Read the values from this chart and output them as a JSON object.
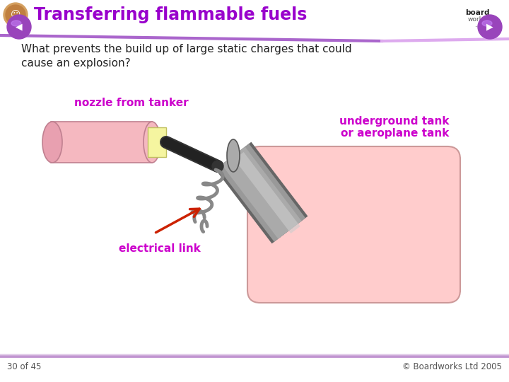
{
  "title": "Transferring flammable fuels",
  "title_color": "#9900cc",
  "bg_color": "#ffffff",
  "header_line_color": "#cc99ee",
  "question_text": "What prevents the build up of large static charges that could\ncause an explosion?",
  "label_nozzle": "nozzle from tanker",
  "label_electrical": "electrical link",
  "label_underground": "underground tank\nor aeroplane tank",
  "label_color": "#cc00cc",
  "footer_text": "© Boardworks Ltd 2005",
  "page_text": "30 of 45",
  "pink_cyl_fill": "#f5b8c0",
  "pink_cyl_edge": "#c08090",
  "pink_cyl_end": "#e8a0b0",
  "yellow_tip_fill": "#f5f5a0",
  "yellow_tip_edge": "#c0c060",
  "dark_pipe_fill": "#444444",
  "gray_pipe_fill": "#888888",
  "gray_pipe_light": "#bbbbbb",
  "gray_pipe_edge": "#555555",
  "wire_color": "#888888",
  "arrow_color": "#cc2200",
  "pink_box_fill": "#ffcccc",
  "pink_box_edge": "#cc9999",
  "nav_btn_color": "#9944bb",
  "footer_line_color": "#bb88cc"
}
